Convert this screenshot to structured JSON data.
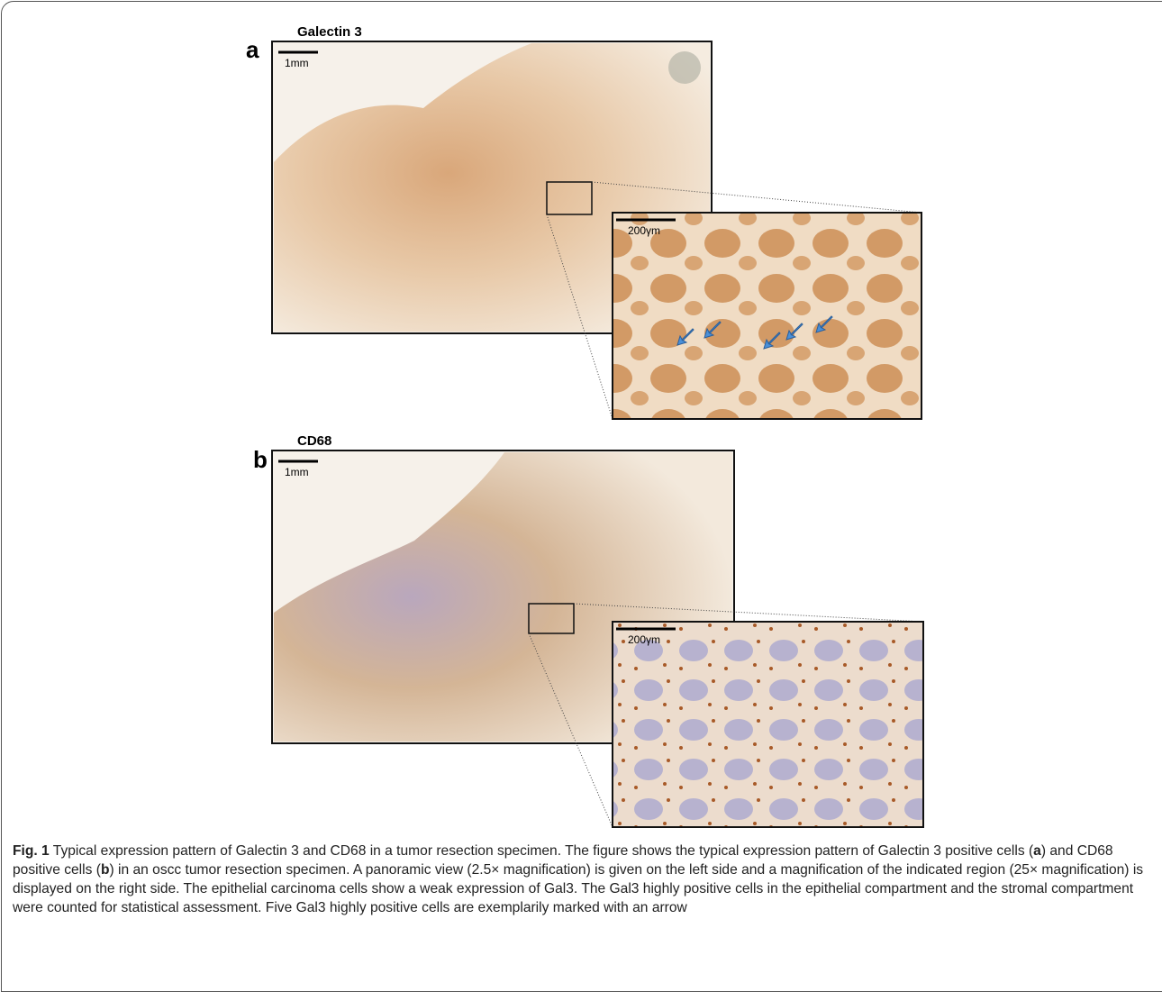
{
  "panels": [
    {
      "letter": "a",
      "title": "Galectin 3",
      "overview_scale": "1mm",
      "zoom_scale": "200γm"
    },
    {
      "letter": "b",
      "title": "CD68",
      "overview_scale": "1mm",
      "zoom_scale": "200γm"
    }
  ],
  "caption": {
    "label": "Fig. 1",
    "segments": [
      {
        "text": " Typical expression pattern of Galectin 3 and CD68 in a tumor resection specimen. The figure shows the typical expression pattern of Galectin 3 positive cells (",
        "bold": false
      },
      {
        "text": "a",
        "bold": true
      },
      {
        "text": ") and CD68 positive cells (",
        "bold": false
      },
      {
        "text": "b",
        "bold": true
      },
      {
        "text": ") in an oscc tumor resection specimen. A panoramic view (2.5× magnification) is given on the left side and a magnification of the indicated region (25× magnification) is displayed on the right side. The epithelial carcinoma cells show a weak expression of Gal3. The Gal3 highly positive cells in the epithelial compartment and the stromal compartment were counted for statistical assessment. Five Gal3 highly positive cells are exemplarily marked with an arrow",
        "bold": false
      }
    ]
  }
}
